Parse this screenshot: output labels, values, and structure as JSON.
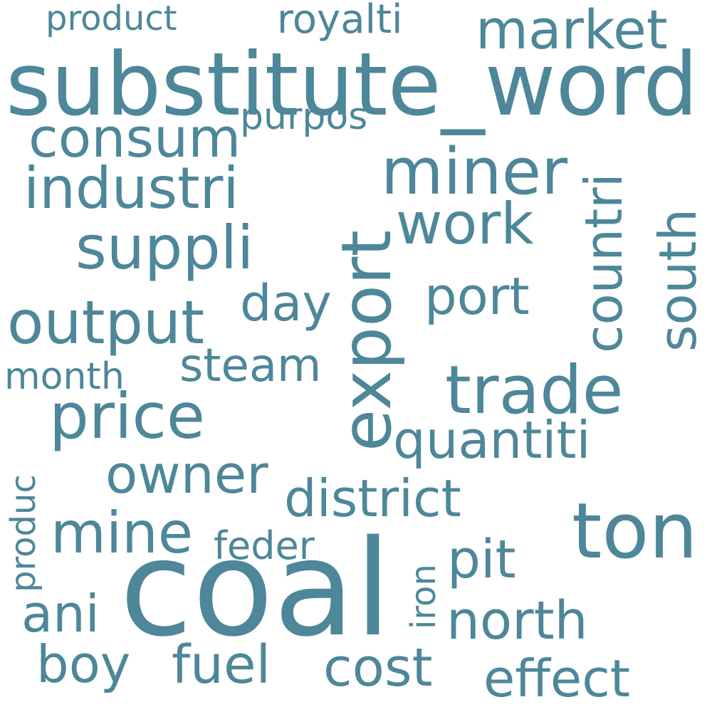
{
  "word_cloud": {
    "words": [
      {
        "text": "substitute_word"
      },
      {
        "text": "coal"
      },
      {
        "text": "ton"
      },
      {
        "text": "export"
      },
      {
        "text": "trade"
      },
      {
        "text": "miner"
      },
      {
        "text": "price"
      },
      {
        "text": "output"
      },
      {
        "text": "suppli"
      },
      {
        "text": "industri"
      },
      {
        "text": "consum"
      },
      {
        "text": "market"
      },
      {
        "text": "work"
      },
      {
        "text": "countri"
      },
      {
        "text": "south"
      },
      {
        "text": "port"
      },
      {
        "text": "quantiti"
      },
      {
        "text": "district"
      },
      {
        "text": "owner"
      },
      {
        "text": "mine"
      },
      {
        "text": "north"
      },
      {
        "text": "pit"
      },
      {
        "text": "cost"
      },
      {
        "text": "fuel"
      },
      {
        "text": "effect"
      },
      {
        "text": "boy"
      },
      {
        "text": "ani"
      },
      {
        "text": "steam"
      },
      {
        "text": "day"
      },
      {
        "text": "royalti"
      },
      {
        "text": "product"
      },
      {
        "text": "purpos"
      },
      {
        "text": "month"
      },
      {
        "text": "produc"
      },
      {
        "text": "feder"
      },
      {
        "text": "iron"
      }
    ],
    "color": "#4d8799",
    "background": "#ffffff"
  }
}
